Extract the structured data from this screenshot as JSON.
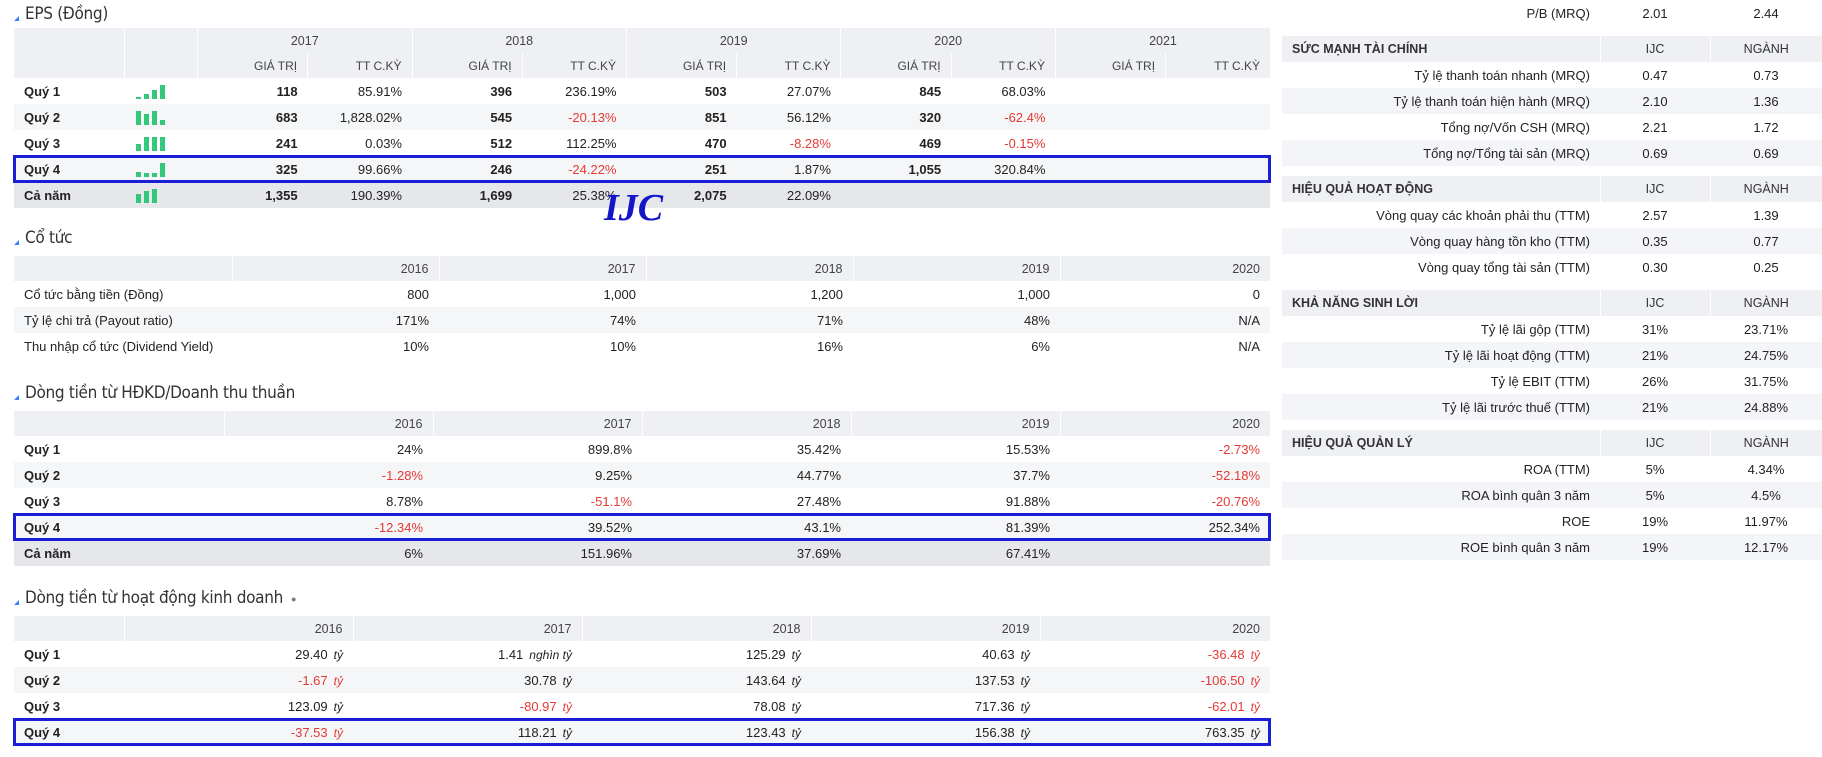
{
  "eps": {
    "title": "EPS (Đồng)",
    "years": [
      "2017",
      "2018",
      "2019",
      "2020",
      "2021"
    ],
    "sub_value": "GIÁ TRỊ",
    "sub_change": "TT C.KỲ",
    "rows": [
      {
        "label": "Quý 1",
        "cells": [
          "118",
          "85.91%",
          "396",
          "236.19%",
          "503",
          "27.07%",
          "845",
          "68.03%",
          "",
          ""
        ],
        "bars": [
          1,
          3,
          5,
          8
        ]
      },
      {
        "label": "Quý 2",
        "cells": [
          "683",
          "1,828.02%",
          "545",
          "-20.13%",
          "851",
          "56.12%",
          "320",
          "-62.4%",
          "",
          ""
        ],
        "bars": [
          8,
          6,
          8,
          3
        ]
      },
      {
        "label": "Quý 3",
        "cells": [
          "241",
          "0.03%",
          "512",
          "112.25%",
          "470",
          "-8.28%",
          "469",
          "-0.15%",
          "",
          ""
        ],
        "bars": [
          4,
          8,
          8,
          8
        ]
      },
      {
        "label": "Quý 4",
        "cells": [
          "325",
          "99.66%",
          "246",
          "-24.22%",
          "251",
          "1.87%",
          "1,055",
          "320.84%",
          "",
          ""
        ],
        "bars": [
          3,
          2,
          2,
          8
        ]
      },
      {
        "label": "Cả năm",
        "cells": [
          "1,355",
          "190.39%",
          "1,699",
          "25.38%",
          "2,075",
          "22.09%",
          "",
          "",
          "",
          ""
        ],
        "bars": [
          5,
          7,
          8
        ]
      }
    ]
  },
  "brand": "IJC",
  "dividend": {
    "title": "Cổ tức",
    "years": [
      "2016",
      "2017",
      "2018",
      "2019",
      "2020"
    ],
    "rows": [
      {
        "label": "Cổ tức bằng tiền (Đồng)",
        "cells": [
          "800",
          "1,000",
          "1,200",
          "1,000",
          "0"
        ]
      },
      {
        "label": "Tỷ lệ chi trả (Payout ratio)",
        "cells": [
          "171%",
          "74%",
          "71%",
          "48%",
          "N/A"
        ]
      },
      {
        "label": "Thu nhập cổ tức (Dividend Yield)",
        "cells": [
          "10%",
          "10%",
          "16%",
          "6%",
          "N/A"
        ]
      }
    ]
  },
  "cf_ratio": {
    "title": "Dòng tiền từ HĐKD/Doanh thu thuần",
    "years": [
      "2016",
      "2017",
      "2018",
      "2019",
      "2020"
    ],
    "rows": [
      {
        "label": "Quý 1",
        "cells": [
          "24%",
          "899.8%",
          "35.42%",
          "15.53%",
          "-2.73%"
        ]
      },
      {
        "label": "Quý 2",
        "cells": [
          "-1.28%",
          "9.25%",
          "44.77%",
          "37.7%",
          "-52.18%"
        ]
      },
      {
        "label": "Quý 3",
        "cells": [
          "8.78%",
          "-51.1%",
          "27.48%",
          "91.88%",
          "-20.76%"
        ]
      },
      {
        "label": "Quý 4",
        "cells": [
          "-12.34%",
          "39.52%",
          "43.1%",
          "81.39%",
          "252.34%"
        ]
      },
      {
        "label": "Cả năm",
        "cells": [
          "6%",
          "151.96%",
          "37.69%",
          "67.41%",
          ""
        ]
      }
    ]
  },
  "cf_ops": {
    "title": "Dòng tiền từ hoạt động kinh doanh",
    "info_dot": "●",
    "years": [
      "2016",
      "2017",
      "2018",
      "2019",
      "2020"
    ],
    "rows": [
      {
        "label": "Quý 1",
        "cells": [
          [
            "29.40",
            "tỷ"
          ],
          [
            "1.41",
            "nghìn tỷ"
          ],
          [
            "125.29",
            "tỷ"
          ],
          [
            "40.63",
            "tỷ"
          ],
          [
            "-36.48",
            "tỷ"
          ]
        ]
      },
      {
        "label": "Quý 2",
        "cells": [
          [
            "-1.67",
            "tỷ"
          ],
          [
            "30.78",
            "tỷ"
          ],
          [
            "143.64",
            "tỷ"
          ],
          [
            "137.53",
            "tỷ"
          ],
          [
            "-106.50",
            "tỷ"
          ]
        ]
      },
      {
        "label": "Quý 3",
        "cells": [
          [
            "123.09",
            "tỷ"
          ],
          [
            "-80.97",
            "tỷ"
          ],
          [
            "78.08",
            "tỷ"
          ],
          [
            "717.36",
            "tỷ"
          ],
          [
            "-62.01",
            "tỷ"
          ]
        ]
      },
      {
        "label": "Quý 4",
        "cells": [
          [
            "-37.53",
            "tỷ"
          ],
          [
            "118.21",
            "tỷ"
          ],
          [
            "123.43",
            "tỷ"
          ],
          [
            "156.38",
            "tỷ"
          ],
          [
            "763.35",
            "tỷ"
          ]
        ]
      }
    ]
  },
  "ratios": {
    "top_row": {
      "label": "P/B (MRQ)",
      "ijc": "2.01",
      "nganh": "2.44"
    },
    "col_ijc": "IJC",
    "col_nganh": "NGÀNH",
    "groups": [
      {
        "title": "SỨC MẠNH TÀI CHÍNH",
        "rows": [
          {
            "label": "Tỷ lệ thanh toán nhanh (MRQ)",
            "ijc": "0.47",
            "nganh": "0.73"
          },
          {
            "label": "Tỷ lệ thanh toán hiện hành (MRQ)",
            "ijc": "2.10",
            "nganh": "1.36"
          },
          {
            "label": "Tổng nợ/Vốn CSH (MRQ)",
            "ijc": "2.21",
            "nganh": "1.72"
          },
          {
            "label": "Tổng nợ/Tổng tài sản (MRQ)",
            "ijc": "0.69",
            "nganh": "0.69"
          }
        ]
      },
      {
        "title": "HIỆU QUẢ HOẠT ĐỘNG",
        "rows": [
          {
            "label": "Vòng quay các khoản phải thu (TTM)",
            "ijc": "2.57",
            "nganh": "1.39"
          },
          {
            "label": "Vòng quay hàng tồn kho (TTM)",
            "ijc": "0.35",
            "nganh": "0.77"
          },
          {
            "label": "Vòng quay tổng tài sản (TTM)",
            "ijc": "0.30",
            "nganh": "0.25"
          }
        ]
      },
      {
        "title": "KHẢ NĂNG SINH LỜI",
        "rows": [
          {
            "label": "Tỷ lệ lãi gộp (TTM)",
            "ijc": "31%",
            "nganh": "23.71%"
          },
          {
            "label": "Tỷ lệ lãi hoạt động (TTM)",
            "ijc": "21%",
            "nganh": "24.75%"
          },
          {
            "label": "Tỷ lệ EBIT (TTM)",
            "ijc": "26%",
            "nganh": "31.75%"
          },
          {
            "label": "Tỷ lệ lãi trước thuế (TTM)",
            "ijc": "21%",
            "nganh": "24.88%"
          }
        ]
      },
      {
        "title": "HIỆU QUẢ QUẢN LÝ",
        "rows": [
          {
            "label": "ROA (TTM)",
            "ijc": "5%",
            "nganh": "4.34%"
          },
          {
            "label": "ROA bình quân 3 năm",
            "ijc": "5%",
            "nganh": "4.5%"
          },
          {
            "label": "ROE",
            "ijc": "19%",
            "nganh": "11.97%"
          },
          {
            "label": "ROE bình quân 3 năm",
            "ijc": "19%",
            "nganh": "12.17%"
          }
        ]
      }
    ]
  },
  "colors": {
    "accent": "#1a1fd6",
    "negative": "#e53935",
    "bar": "#34c77b",
    "header_bg": "#eef0f4"
  }
}
